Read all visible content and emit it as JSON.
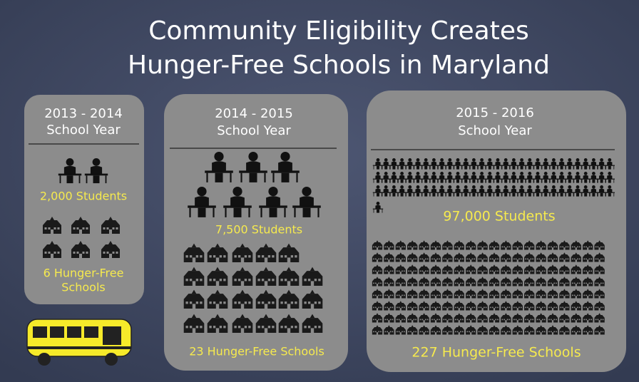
{
  "title": {
    "line1": "Community Eligibility Creates",
    "line2": "Hunger-Free Schools in Maryland"
  },
  "panels": [
    {
      "year": "2013 - 2014",
      "label": "School Year",
      "students": "2,000 Students",
      "schools_line1": "6 Hunger-Free",
      "schools_line2": "Schools"
    },
    {
      "year": "2014 - 2015",
      "label": "School Year",
      "students": "7,500 Students",
      "schools": "23 Hunger-Free Schools"
    },
    {
      "year": "2015 - 2016",
      "label": "School Year",
      "students": "97,000 Students",
      "schools": "227 Hunger-Free Schools"
    }
  ]
}
